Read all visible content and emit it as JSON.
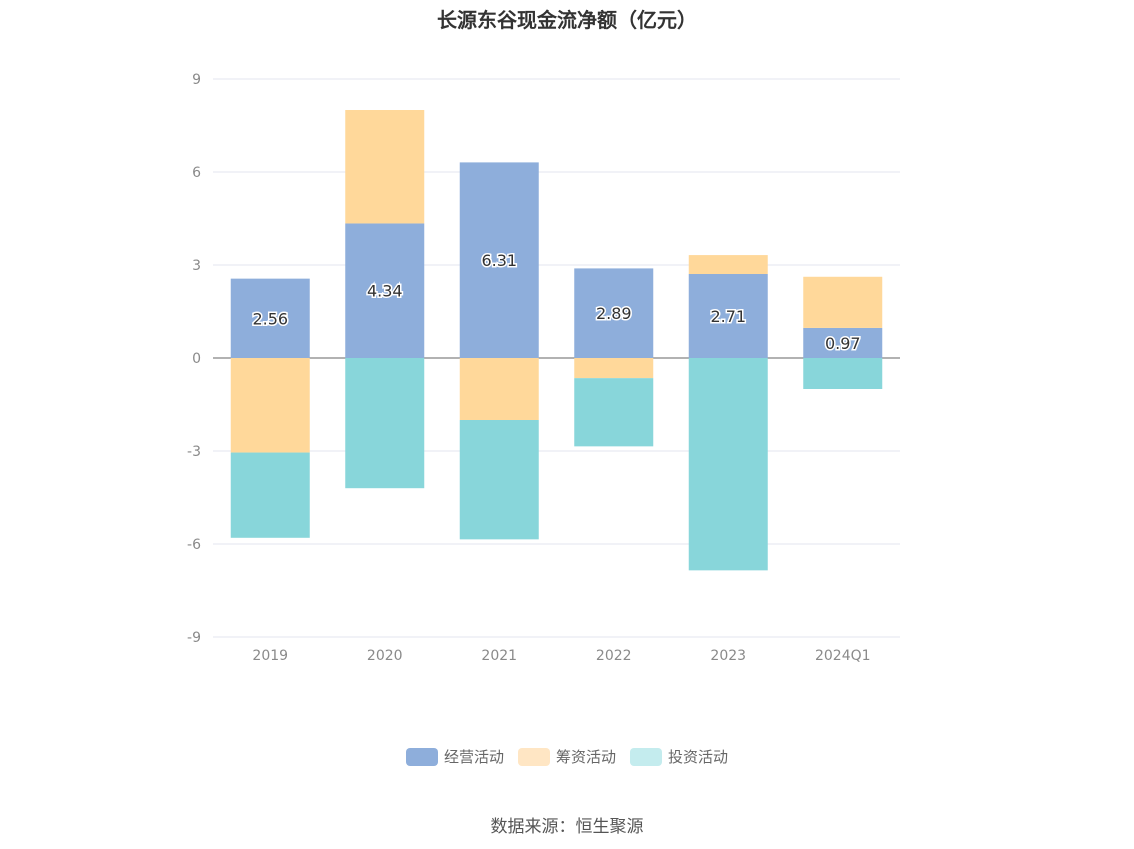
{
  "chart_data": {
    "type": "bar",
    "stacked": true,
    "title": "长源东谷现金流净额（亿元）",
    "categories": [
      "2019",
      "2020",
      "2021",
      "2022",
      "2023",
      "2024Q1"
    ],
    "series": [
      {
        "name": "经营活动",
        "color": "#8eaedb",
        "values": [
          2.56,
          4.34,
          6.31,
          2.89,
          2.71,
          0.97
        ],
        "show_labels": true
      },
      {
        "name": "筹资活动",
        "color": "#ffd89a",
        "values": [
          -3.05,
          3.66,
          -2.0,
          -0.65,
          0.61,
          1.65
        ],
        "show_labels": false
      },
      {
        "name": "投资活动",
        "color": "#88d6da",
        "values": [
          -2.75,
          -4.2,
          -3.85,
          -2.2,
          -6.85,
          -1.0
        ],
        "show_labels": false
      }
    ],
    "yticks": [
      9,
      6,
      3,
      0,
      -3,
      -6,
      -9
    ],
    "ylim": [
      -9,
      9
    ],
    "grid": true,
    "legend_position": "bottom"
  },
  "legend_items": [
    {
      "label": "经营活动",
      "color": "#8eaedb"
    },
    {
      "label": "筹资活动",
      "color": "#ffe6c4"
    },
    {
      "label": "投资活动",
      "color": "#c4ecee"
    }
  ],
  "source": "数据来源：恒生聚源"
}
